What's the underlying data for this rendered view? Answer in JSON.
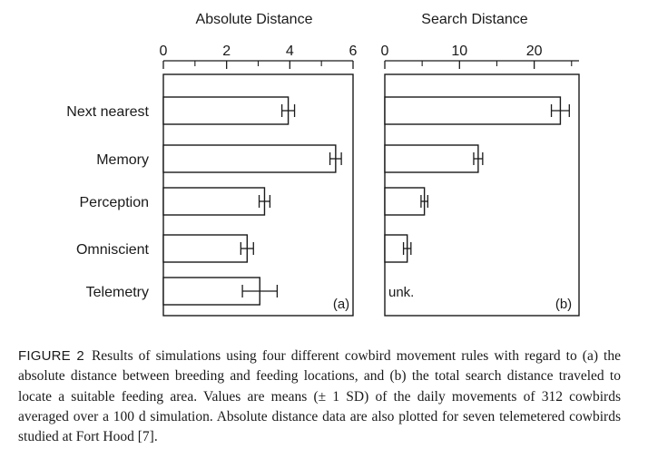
{
  "chart_data": [
    {
      "type": "bar",
      "orientation": "horizontal",
      "title": "Absolute Distance",
      "panel_label": "(a)",
      "categories": [
        "Next nearest",
        "Memory",
        "Perception",
        "Omniscient",
        "Telemetry"
      ],
      "values": [
        3.95,
        5.45,
        3.2,
        2.65,
        3.05
      ],
      "errors": [
        0.2,
        0.18,
        0.17,
        0.2,
        0.55
      ],
      "xlim": [
        0,
        6
      ],
      "major_ticks": [
        0,
        2,
        4,
        6
      ],
      "tick_labels": [
        "0",
        "2",
        "4",
        "6"
      ],
      "minor_ticks": [
        1,
        3,
        5
      ],
      "grid": false
    },
    {
      "type": "bar",
      "orientation": "horizontal",
      "title": "Search Distance",
      "panel_label": "(b)",
      "categories": [
        "Next nearest",
        "Memory",
        "Perception",
        "Omniscient",
        "Telemetry"
      ],
      "values": [
        23.5,
        12.5,
        5.3,
        3.0,
        null
      ],
      "errors": [
        1.2,
        0.6,
        0.45,
        0.5,
        null
      ],
      "missing_label": "unk.",
      "xlim": [
        0,
        26
      ],
      "major_ticks": [
        0,
        10,
        20
      ],
      "tick_labels": [
        "0",
        "10",
        "20"
      ],
      "minor_ticks": [
        5,
        15,
        25
      ],
      "grid": false
    }
  ],
  "caption": {
    "label": "FIGURE 2",
    "text": "Results of simulations using four different cowbird movement rules with regard to (a) the absolute distance between breeding and feeding locations, and (b) the total search distance traveled to locate a suitable feeding area. Values are means (± 1 SD) of the daily movements of 312 cowbirds averaged over a 100 d simulation. Absolute distance data are also plotted for seven telemetered cowbirds studied at Fort Hood [7]."
  }
}
